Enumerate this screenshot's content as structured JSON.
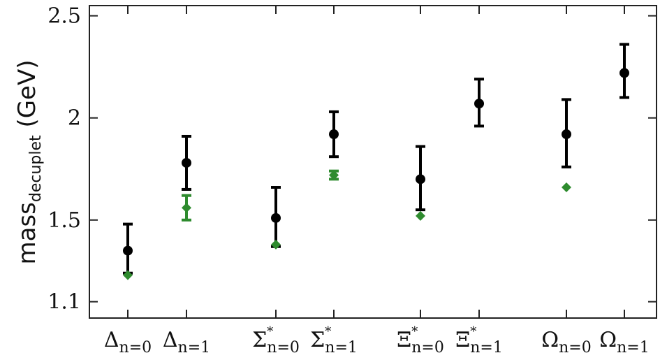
{
  "chart_data": {
    "type": "scatter",
    "title": "",
    "ylabel": {
      "main": "mass",
      "sub": "decuplet",
      "unit": " (GeV)"
    },
    "xlabel": "",
    "ylim": [
      1.02,
      2.55
    ],
    "yticks": [
      {
        "value": 1.1,
        "label": "1.1"
      },
      {
        "value": 1.5,
        "label": "1.5"
      },
      {
        "value": 2.0,
        "label": "2"
      },
      {
        "value": 2.5,
        "label": "2.5"
      }
    ],
    "categories": [
      {
        "base": "Δ",
        "sup": "",
        "sub": "n=0"
      },
      {
        "base": "Δ",
        "sup": "",
        "sub": "n=1"
      },
      {
        "base": "Σ",
        "sup": "*",
        "sub": "n=0"
      },
      {
        "base": "Σ",
        "sup": "*",
        "sub": "n=1"
      },
      {
        "base": "Ξ",
        "sup": "*",
        "sub": "n=0"
      },
      {
        "base": "Ξ",
        "sup": "*",
        "sub": "n=1"
      },
      {
        "base": "Ω",
        "sup": "",
        "sub": "n=0"
      },
      {
        "base": "Ω",
        "sup": "",
        "sub": "n=1"
      }
    ],
    "series": [
      {
        "color": "#000000",
        "marker": "circle",
        "points": [
          {
            "category": 0,
            "y": 1.35,
            "err_low": 0.11,
            "err_high": 0.13
          },
          {
            "category": 1,
            "y": 1.78,
            "err_low": 0.13,
            "err_high": 0.13
          },
          {
            "category": 2,
            "y": 1.51,
            "err_low": 0.14,
            "err_high": 0.15
          },
          {
            "category": 3,
            "y": 1.92,
            "err_low": 0.11,
            "err_high": 0.11
          },
          {
            "category": 4,
            "y": 1.7,
            "err_low": 0.15,
            "err_high": 0.16
          },
          {
            "category": 5,
            "y": 2.07,
            "err_low": 0.11,
            "err_high": 0.12
          },
          {
            "category": 6,
            "y": 1.92,
            "err_low": 0.16,
            "err_high": 0.17
          },
          {
            "category": 7,
            "y": 2.22,
            "err_low": 0.12,
            "err_high": 0.14
          }
        ]
      },
      {
        "color": "#2e8b2e",
        "marker": "diamond",
        "points": [
          {
            "category": 0,
            "y": 1.23,
            "err_low": 0.0,
            "err_high": 0.0
          },
          {
            "category": 1,
            "y": 1.56,
            "err_low": 0.06,
            "err_high": 0.06
          },
          {
            "category": 2,
            "y": 1.38,
            "err_low": 0.0,
            "err_high": 0.0
          },
          {
            "category": 3,
            "y": 1.72,
            "err_low": 0.02,
            "err_high": 0.02
          },
          {
            "category": 4,
            "y": 1.52,
            "err_low": 0.0,
            "err_high": 0.0
          },
          {
            "category": 6,
            "y": 1.66,
            "err_low": 0.0,
            "err_high": 0.0
          }
        ]
      }
    ],
    "grid": false
  }
}
